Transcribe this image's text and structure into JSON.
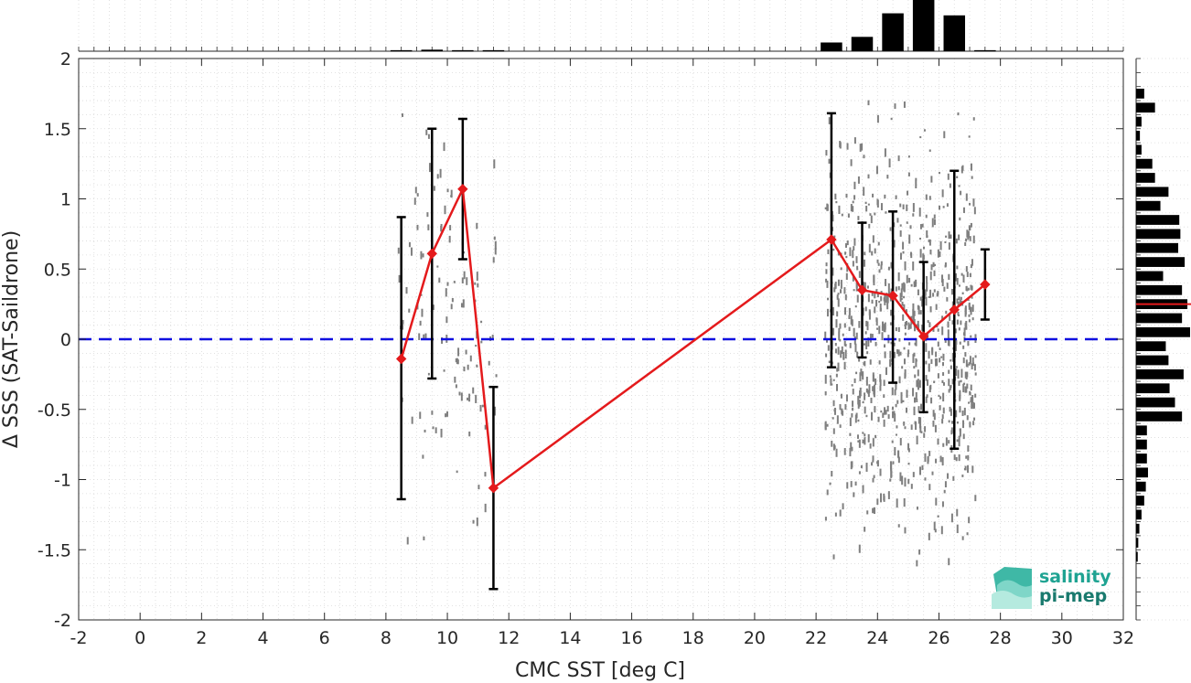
{
  "chart_data": {
    "type": "line",
    "xlabel": "CMC SST [deg C]",
    "ylabel": "Δ SSS (SAT-Saildrone)",
    "xlim": [
      -2,
      32
    ],
    "ylim": [
      -2,
      2
    ],
    "xticks": [
      -2,
      0,
      2,
      4,
      6,
      8,
      10,
      12,
      14,
      16,
      18,
      20,
      22,
      24,
      26,
      28,
      30,
      32
    ],
    "yticks": [
      -2,
      -1.5,
      -1,
      -0.5,
      0,
      0.5,
      1,
      1.5,
      2
    ],
    "xtick_labels": [
      "-2",
      "0",
      "2",
      "4",
      "6",
      "8",
      "10",
      "12",
      "14",
      "16",
      "18",
      "20",
      "22",
      "24",
      "26",
      "28",
      "30",
      "32"
    ],
    "ytick_labels": [
      "-2",
      "-1.5",
      "-1",
      "-0.5",
      "0",
      "0.5",
      "1",
      "1.5",
      "2"
    ],
    "grid": true,
    "colors": {
      "mean_line": "#e41a1c",
      "error_bar": "#000000",
      "zero_line": "#1010e0",
      "scatter": "#7f7f7f",
      "histogram": "#000000"
    },
    "series": [
      {
        "x": [
          8.5,
          9.5,
          10.5,
          11.5,
          22.5,
          23.5,
          24.5,
          25.5,
          26.5,
          27.5
        ],
        "values": [
          -0.14,
          0.61,
          1.07,
          -1.06,
          0.71,
          0.35,
          0.31,
          0.02,
          0.21,
          0.39
        ],
        "err_low": [
          -1.14,
          -0.28,
          0.57,
          -1.78,
          -0.2,
          -0.13,
          -0.31,
          -0.52,
          -0.78,
          0.14
        ],
        "err_high": [
          0.87,
          1.5,
          1.57,
          -0.34,
          1.61,
          0.83,
          0.91,
          0.55,
          1.2,
          0.64
        ]
      }
    ],
    "reference_line": {
      "y": 0,
      "style": "dashed"
    },
    "scatter_clusters": [
      {
        "x_range": [
          8.4,
          11.6
        ],
        "y_range": [
          -1.45,
          1.7
        ]
      },
      {
        "x_range": [
          22.3,
          27.2
        ],
        "y_range": [
          -1.65,
          1.82
        ]
      }
    ],
    "top_histogram": {
      "bins_center": [
        8.5,
        9.5,
        10.5,
        11.5,
        22.5,
        23.5,
        24.5,
        25.5,
        26.5,
        27.5
      ],
      "counts": [
        0.02,
        0.03,
        0.02,
        0.02,
        0.17,
        0.28,
        0.74,
        1.0,
        0.7,
        0.02
      ]
    },
    "right_histogram": {
      "bins_center": [
        1.95,
        1.85,
        1.75,
        1.65,
        1.55,
        1.45,
        1.35,
        1.25,
        1.15,
        1.05,
        0.95,
        0.85,
        0.75,
        0.65,
        0.55,
        0.45,
        0.35,
        0.25,
        0.15,
        0.05,
        -0.05,
        -0.15,
        -0.25,
        -0.35,
        -0.45,
        -0.55,
        -0.65,
        -0.75,
        -0.85,
        -0.95,
        -1.05,
        -1.15,
        -1.25,
        -1.35,
        -1.45,
        -1.55,
        -1.65,
        -1.75,
        -1.85,
        -1.95
      ],
      "counts": [
        0.0,
        0.0,
        0.15,
        0.35,
        0.1,
        0.07,
        0.1,
        0.3,
        0.35,
        0.6,
        0.45,
        0.8,
        0.82,
        0.78,
        0.9,
        0.5,
        0.85,
        0.95,
        0.85,
        1.0,
        0.55,
        0.6,
        0.88,
        0.62,
        0.72,
        0.85,
        0.2,
        0.2,
        0.2,
        0.22,
        0.18,
        0.15,
        0.1,
        0.06,
        0.04,
        0.03,
        0.0,
        0.0,
        0.0,
        0.0
      ],
      "mean_marker": 0.25
    }
  },
  "logo": {
    "line1": "salinity",
    "line2": "pi-mep"
  }
}
